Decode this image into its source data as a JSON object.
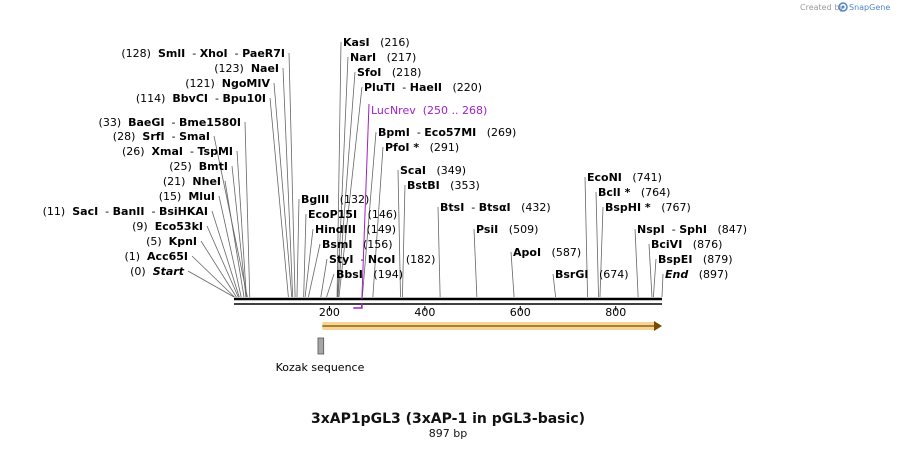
{
  "credit": {
    "prefix": "Created by",
    "brand": "SnapGene"
  },
  "title": "3xAP1pGL3 (3xAP-1 in pGL3-basic)",
  "subtitle": "897 bp",
  "sequence_length": 897,
  "axis_ticks": [
    {
      "value": 200,
      "label": "200"
    },
    {
      "value": 400,
      "label": "400"
    },
    {
      "value": 600,
      "label": "600"
    },
    {
      "value": 800,
      "label": "800"
    }
  ],
  "features": {
    "kozak": {
      "label": "Kozak sequence",
      "start": 176,
      "end": 188
    },
    "primer": {
      "label": "LucNrev",
      "range": "(250 .. 268)",
      "start": 250,
      "end": 268,
      "color": "#a020c8"
    },
    "orf": {
      "start": 185,
      "end": 897,
      "color": "#f3b03c"
    }
  },
  "left_sites": [
    {
      "enzymes": [
        "SmlI",
        "XhoI",
        "PaeR7I"
      ],
      "pos": "(128)",
      "bp": 128
    },
    {
      "enzymes": [
        "NaeI"
      ],
      "pos": "(123)",
      "bp": 123
    },
    {
      "enzymes": [
        "NgoMIV"
      ],
      "pos": "(121)",
      "bp": 121
    },
    {
      "enzymes": [
        "BbvCI",
        "Bpu10I"
      ],
      "pos": "(114)",
      "bp": 114
    },
    {
      "enzymes": [
        "BaeGI",
        "Bme1580I"
      ],
      "pos": "(33)",
      "bp": 33
    },
    {
      "enzymes": [
        "SrfI",
        "SmaI"
      ],
      "pos": "(28)",
      "bp": 28
    },
    {
      "enzymes": [
        "XmaI",
        "TspMI"
      ],
      "pos": "(26)",
      "bp": 26
    },
    {
      "enzymes": [
        "BmtI"
      ],
      "pos": "(25)",
      "bp": 25
    },
    {
      "enzymes": [
        "NheI"
      ],
      "pos": "(21)",
      "bp": 21
    },
    {
      "enzymes": [
        "MluI"
      ],
      "pos": "(15)",
      "bp": 15
    },
    {
      "enzymes": [
        "SacI",
        "BanII",
        "BsiHKAI"
      ],
      "pos": "(11)",
      "bp": 11
    },
    {
      "enzymes": [
        "Eco53kI"
      ],
      "pos": "(9)",
      "bp": 9
    },
    {
      "enzymes": [
        "KpnI"
      ],
      "pos": "(5)",
      "bp": 5
    },
    {
      "enzymes": [
        "Acc65I"
      ],
      "pos": "(1)",
      "bp": 1
    },
    {
      "enzymes": [
        "Start"
      ],
      "pos": "(0)",
      "bp": 0,
      "italic": true
    }
  ],
  "top_sites": [
    {
      "enzymes": [
        "KasI"
      ],
      "pos": "(216)",
      "bp": 216
    },
    {
      "enzymes": [
        "NarI"
      ],
      "pos": "(217)",
      "bp": 217
    },
    {
      "enzymes": [
        "SfoI"
      ],
      "pos": "(218)",
      "bp": 218
    },
    {
      "enzymes": [
        "PluTI",
        "HaeII"
      ],
      "pos": "(220)",
      "bp": 220
    }
  ],
  "mid_sites": [
    {
      "enzymes": [
        "BpmI",
        "Eco57MI"
      ],
      "pos": "(269)",
      "bp": 269
    },
    {
      "enzymes": [
        "PfoI *"
      ],
      "pos": "(291)",
      "bp": 291
    },
    {
      "enzymes": [
        "ScaI"
      ],
      "pos": "(349)",
      "bp": 349
    },
    {
      "enzymes": [
        "BstBI"
      ],
      "pos": "(353)",
      "bp": 353
    },
    {
      "enzymes": [
        "BglII"
      ],
      "pos": "(132)",
      "bp": 132
    },
    {
      "enzymes": [
        "EcoP15I"
      ],
      "pos": "(146)",
      "bp": 146
    },
    {
      "enzymes": [
        "HindIII"
      ],
      "pos": "(149)",
      "bp": 149
    },
    {
      "enzymes": [
        "BsmI"
      ],
      "pos": "(156)",
      "bp": 156
    },
    {
      "enzymes": [
        "StyI",
        "NcoI"
      ],
      "pos": "(182)",
      "bp": 182
    },
    {
      "enzymes": [
        "BbsI"
      ],
      "pos": "(194)",
      "bp": 194
    },
    {
      "enzymes": [
        "BtsI",
        "BtsαI"
      ],
      "pos": "(432)",
      "bp": 432
    },
    {
      "enzymes": [
        "PsiI"
      ],
      "pos": "(509)",
      "bp": 509
    },
    {
      "enzymes": [
        "ApoI"
      ],
      "pos": "(587)",
      "bp": 587
    },
    {
      "enzymes": [
        "BsrGI"
      ],
      "pos": "(674)",
      "bp": 674
    }
  ],
  "right_sites": [
    {
      "enzymes": [
        "EcoNI"
      ],
      "pos": "(741)",
      "bp": 741
    },
    {
      "enzymes": [
        "BclI *"
      ],
      "pos": "(764)",
      "bp": 764
    },
    {
      "enzymes": [
        "BspHI *"
      ],
      "pos": "(767)",
      "bp": 767
    },
    {
      "enzymes": [
        "NspI",
        "SphI"
      ],
      "pos": "(847)",
      "bp": 847
    },
    {
      "enzymes": [
        "BciVI"
      ],
      "pos": "(876)",
      "bp": 876
    },
    {
      "enzymes": [
        "BspEI"
      ],
      "pos": "(879)",
      "bp": 879
    },
    {
      "enzymes": [
        "End"
      ],
      "pos": "(897)",
      "bp": 897,
      "italic": true
    }
  ]
}
